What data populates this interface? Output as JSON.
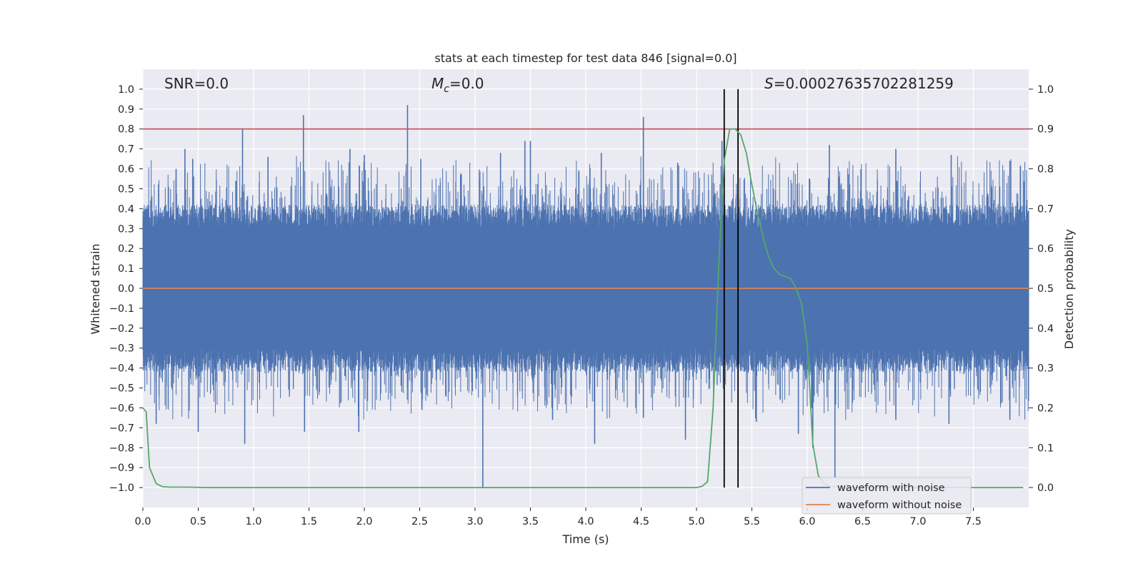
{
  "chart_data": {
    "type": "line",
    "title": "stats at each timestep for test data 846 [signal=0.0]",
    "xlabel": "Time (s)",
    "ylabel": "Whitened strain",
    "y2label": "Detection probability",
    "xlim": [
      0.0,
      8.0
    ],
    "ylim": [
      -1.1,
      1.1
    ],
    "y2lim": [
      -0.05,
      1.05
    ],
    "grid": true,
    "x_ticks": [
      0.0,
      0.5,
      1.0,
      1.5,
      2.0,
      2.5,
      3.0,
      3.5,
      4.0,
      4.5,
      5.0,
      5.5,
      6.0,
      6.5,
      7.0,
      7.5
    ],
    "x_tick_labels": [
      "0.0",
      "0.5",
      "1.0",
      "1.5",
      "2.0",
      "2.5",
      "3.0",
      "3.5",
      "4.0",
      "4.5",
      "5.0",
      "5.5",
      "6.0",
      "6.5",
      "7.0",
      "7.5"
    ],
    "y_ticks": [
      1.0,
      0.9,
      0.8,
      0.7,
      0.6,
      0.5,
      0.4,
      0.3,
      0.2,
      0.1,
      0.0,
      -0.1,
      -0.2,
      -0.3,
      -0.4,
      -0.5,
      -0.6,
      -0.7,
      -0.8,
      -0.9,
      -1.0
    ],
    "y_tick_labels": [
      "1.0",
      "0.9",
      "0.8",
      "0.7",
      "0.6",
      "0.5",
      "0.4",
      "0.3",
      "0.2",
      "0.1",
      "0.0",
      "−0.1",
      "−0.2",
      "−0.3",
      "−0.4",
      "−0.5",
      "−0.6",
      "−0.7",
      "−0.8",
      "−0.9",
      "−1.0"
    ],
    "y2_ticks": [
      1.0,
      0.9,
      0.8,
      0.7,
      0.6,
      0.5,
      0.4,
      0.3,
      0.2,
      0.1,
      0.0
    ],
    "y2_tick_labels": [
      "1.0",
      "0.9",
      "0.8",
      "0.7",
      "0.6",
      "0.5",
      "0.4",
      "0.3",
      "0.2",
      "0.1",
      "0.0"
    ],
    "annotations": {
      "snr_text": "SNR=0.0",
      "mc_symbol": "M",
      "mc_sub": "c",
      "mc_value": "=0.0",
      "s_symbol": "S",
      "s_value": "=0.00027635702281259"
    },
    "threshold": {
      "value_y2": 0.9,
      "color": "#c44e52"
    },
    "vertical_lines_x": [
      5.25,
      5.375
    ],
    "legend_position": "lower-right",
    "series": [
      {
        "name": "waveform with noise",
        "color": "#4c72b0",
        "band": {
          "x_start": 0.0,
          "x_end": 8.0,
          "typical_low": -0.3,
          "typical_high": 0.3
        },
        "peaks": [
          {
            "x": 0.3,
            "y": 0.6
          },
          {
            "x": 0.38,
            "y": 0.7
          },
          {
            "x": 0.45,
            "y": 0.65
          },
          {
            "x": 0.9,
            "y": 0.8
          },
          {
            "x": 1.13,
            "y": 0.66
          },
          {
            "x": 1.45,
            "y": 0.87
          },
          {
            "x": 1.87,
            "y": 0.7
          },
          {
            "x": 2.0,
            "y": 0.67
          },
          {
            "x": 2.39,
            "y": 0.92
          },
          {
            "x": 2.51,
            "y": 0.65
          },
          {
            "x": 3.23,
            "y": 0.68
          },
          {
            "x": 3.45,
            "y": 0.74
          },
          {
            "x": 3.5,
            "y": 0.74
          },
          {
            "x": 4.14,
            "y": 0.68
          },
          {
            "x": 4.52,
            "y": 0.86
          },
          {
            "x": 4.83,
            "y": 0.63
          },
          {
            "x": 5.23,
            "y": 0.74
          },
          {
            "x": 6.2,
            "y": 0.72
          },
          {
            "x": 6.8,
            "y": 0.7
          },
          {
            "x": 7.3,
            "y": 0.67
          },
          {
            "x": 7.83,
            "y": 0.64
          }
        ],
        "troughs": [
          {
            "x": 0.12,
            "y": -0.68
          },
          {
            "x": 0.5,
            "y": -0.72
          },
          {
            "x": 0.92,
            "y": -0.78
          },
          {
            "x": 1.46,
            "y": -0.72
          },
          {
            "x": 1.95,
            "y": -0.72
          },
          {
            "x": 2.52,
            "y": -0.61
          },
          {
            "x": 3.07,
            "y": -1.0
          },
          {
            "x": 3.7,
            "y": -0.66
          },
          {
            "x": 4.08,
            "y": -0.78
          },
          {
            "x": 4.52,
            "y": -0.65
          },
          {
            "x": 4.9,
            "y": -0.76
          },
          {
            "x": 5.54,
            "y": -0.67
          },
          {
            "x": 5.92,
            "y": -0.73
          },
          {
            "x": 6.05,
            "y": -0.8
          },
          {
            "x": 6.25,
            "y": -0.95
          },
          {
            "x": 6.8,
            "y": -0.66
          },
          {
            "x": 7.28,
            "y": -0.68
          },
          {
            "x": 7.83,
            "y": -0.66
          }
        ]
      },
      {
        "name": "waveform without noise",
        "color": "#dd8452",
        "x": [
          0.0,
          8.0
        ],
        "y": [
          0.0,
          0.0
        ]
      },
      {
        "name": "detection probability",
        "axis": "y2",
        "color": "#55a868",
        "x": [
          0.0,
          0.03,
          0.06,
          0.12,
          0.18,
          0.25,
          0.4,
          0.6,
          1.0,
          2.0,
          3.0,
          4.0,
          4.5,
          4.9,
          5.0,
          5.05,
          5.1,
          5.15,
          5.2,
          5.23,
          5.25,
          5.3,
          5.35,
          5.4,
          5.45,
          5.5,
          5.55,
          5.6,
          5.65,
          5.7,
          5.75,
          5.8,
          5.85,
          5.9,
          5.95,
          6.0,
          6.05,
          6.1,
          6.15,
          6.2,
          6.3,
          6.5,
          7.0,
          7.5,
          7.95
        ],
        "y": [
          0.2,
          0.19,
          0.05,
          0.01,
          0.002,
          0.001,
          0.001,
          0.0,
          0.0,
          0.0,
          0.0,
          0.0,
          0.0,
          0.0,
          0.0,
          0.003,
          0.015,
          0.2,
          0.55,
          0.73,
          0.82,
          0.9,
          0.9,
          0.885,
          0.84,
          0.76,
          0.69,
          0.63,
          0.58,
          0.55,
          0.535,
          0.53,
          0.525,
          0.5,
          0.46,
          0.36,
          0.11,
          0.03,
          0.01,
          0.003,
          0.001,
          0.0,
          0.0,
          0.0,
          0.0
        ]
      }
    ]
  }
}
